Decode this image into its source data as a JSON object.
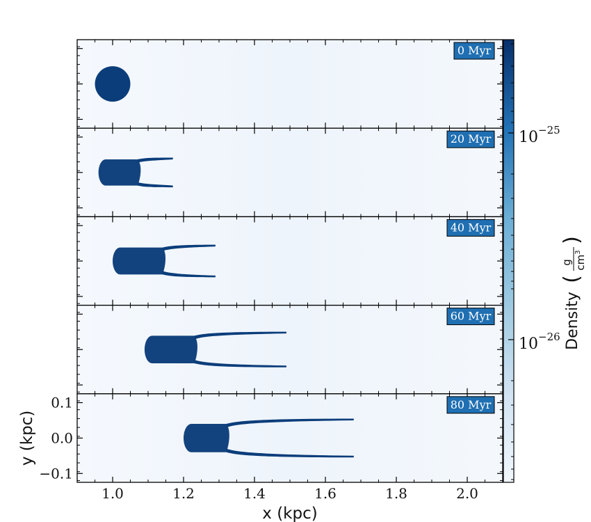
{
  "chart_data": {
    "type": "heatmap",
    "title": "",
    "xlabel": "x  (kpc)",
    "ylabel": "y  (kpc)",
    "xlim": [
      0.9,
      2.1
    ],
    "ylim": [
      -0.125,
      0.125
    ],
    "xticks": [
      1.0,
      1.2,
      1.4,
      1.6,
      1.8,
      2.0
    ],
    "xtick_labels": [
      "1.0",
      "1.2",
      "1.4",
      "1.6",
      "1.8",
      "2.0"
    ],
    "yticks": [
      0.1,
      0.0,
      -0.1
    ],
    "ytick_labels": [
      "0.1",
      "0.0",
      "−0.1"
    ],
    "panels": [
      {
        "time_label": "0 Myr",
        "cloud_head_x": 0.95,
        "cloud_body_end_x": 1.05,
        "tail_end_x": 1.05
      },
      {
        "time_label": "20 Myr",
        "cloud_head_x": 0.96,
        "cloud_body_end_x": 1.07,
        "tail_end_x": 1.17
      },
      {
        "time_label": "40 Myr",
        "cloud_head_x": 1.0,
        "cloud_body_end_x": 1.14,
        "tail_end_x": 1.29
      },
      {
        "time_label": "60 Myr",
        "cloud_head_x": 1.09,
        "cloud_body_end_x": 1.23,
        "tail_end_x": 1.49
      },
      {
        "time_label": "80 Myr",
        "cloud_head_x": 1.2,
        "cloud_body_end_x": 1.32,
        "tail_end_x": 1.68
      }
    ],
    "colorbar": {
      "label": "Density",
      "unit_numerator": "g",
      "unit_denominator": "cm",
      "unit_exponent": "3",
      "scale": "log",
      "colormap": "Blues",
      "tick_base": "10",
      "tick_exponents": [
        "−25",
        "−26"
      ],
      "tick_values": [
        1e-25,
        1e-26
      ]
    },
    "colors": {
      "background": "#f4f8fd",
      "cloud": "#0b3d7a",
      "badge": "#1f6fb2"
    }
  }
}
